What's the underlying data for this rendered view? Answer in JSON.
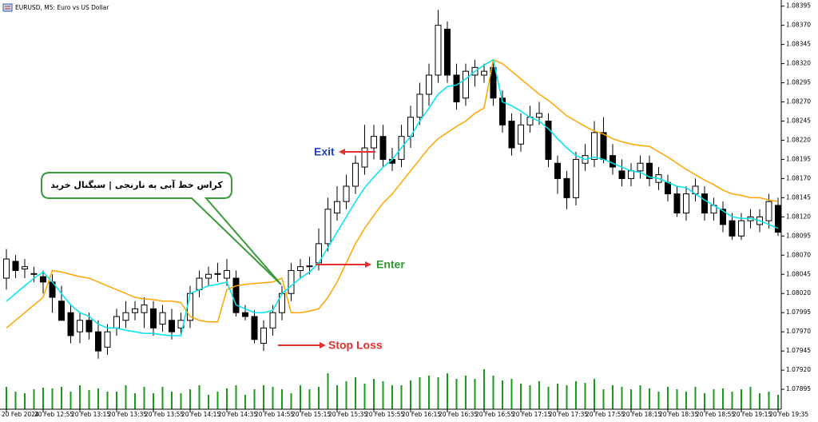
{
  "chart_data": {
    "type": "candlestick",
    "title": "EURUSD, M5:  Euro vs US Dollar",
    "categories": [
      "20 Feb 2024",
      null,
      null,
      null,
      "20 Feb 12:55",
      null,
      null,
      null,
      "20 Feb 13:15",
      null,
      null,
      null,
      "20 Feb 13:35",
      null,
      null,
      null,
      "20 Feb 13:55",
      null,
      null,
      null,
      "20 Feb 14:15",
      null,
      null,
      null,
      "20 Feb 14:35",
      null,
      null,
      null,
      "20 Feb 14:55",
      null,
      null,
      null,
      "20 Feb 15:15",
      null,
      null,
      null,
      "20 Feb 15:35",
      null,
      null,
      null,
      "20 Feb 15:55",
      null,
      null,
      null,
      "20 Feb 16:15",
      null,
      null,
      null,
      "20 Feb 16:35",
      null,
      null,
      null,
      "20 Feb 16:55",
      null,
      null,
      null,
      "20 Feb 17:15",
      null,
      null,
      null,
      "20 Feb 17:35",
      null,
      null,
      null,
      "20 Feb 17:55",
      null,
      null,
      null,
      "20 Feb 18:15",
      null,
      null,
      null,
      "20 Feb 18:35",
      null,
      null,
      null,
      "20 Feb 18:55",
      null,
      null,
      null,
      "20 Feb 19:15",
      null,
      null,
      null,
      "20 Feb 19:35"
    ],
    "open": [
      1.0804,
      1.08062,
      1.08052,
      1.08045,
      1.08042,
      1.08035,
      1.0801,
      1.07995,
      1.0797,
      1.07985,
      1.0797,
      1.0795,
      1.07975,
      1.07985,
      1.07995,
      1.07995,
      1.08,
      1.0798,
      1.07985,
      1.07975,
      1.07985,
      1.08025,
      1.0804,
      1.08045,
      1.0804,
      1.0804,
      1.07995,
      1.0799,
      1.07955,
      1.07975,
      1.07995,
      1.0802,
      1.0805,
      1.08055,
      1.0806,
      1.08085,
      1.08125,
      1.0814,
      1.0816,
      1.08185,
      1.0821,
      1.08225,
      1.08195,
      1.08195,
      1.08225,
      1.0825,
      1.0828,
      1.08305,
      1.08365,
      1.08305,
      1.08275,
      1.08305,
      1.08305,
      1.08315,
      1.08275,
      1.08245,
      1.08215,
      1.0824,
      1.0825,
      1.08245,
      1.0819,
      1.0817,
      1.08145,
      1.0819,
      1.08195,
      1.0823,
      1.082,
      1.0818,
      1.0817,
      1.0818,
      1.0819,
      1.08165,
      1.08165,
      1.0815,
      1.08125,
      1.0815,
      1.0815,
      1.08125,
      1.0813,
      1.08115,
      1.08095,
      1.08115,
      1.0811,
      1.08115,
      1.08135
    ],
    "high": [
      1.08078,
      1.0807,
      1.08065,
      1.08055,
      1.0805,
      1.08045,
      1.0803,
      1.08005,
      1.07995,
      1.07995,
      1.07985,
      1.0798,
      1.08,
      1.0801,
      1.0801,
      1.08015,
      1.0801,
      1.08005,
      1.08,
      1.07995,
      1.0803,
      1.0805,
      1.08055,
      1.0806,
      1.08065,
      1.0805,
      1.08005,
      1.07998,
      1.07985,
      1.08005,
      1.0803,
      1.0806,
      1.08065,
      1.08068,
      1.08105,
      1.08145,
      1.0816,
      1.08175,
      1.082,
      1.0824,
      1.0824,
      1.0824,
      1.0821,
      1.0824,
      1.08265,
      1.08295,
      1.0832,
      1.0839,
      1.08375,
      1.0832,
      1.0832,
      1.08325,
      1.0832,
      1.08325,
      1.08285,
      1.08255,
      1.08255,
      1.08265,
      1.0827,
      1.08255,
      1.082,
      1.0818,
      1.08205,
      1.08215,
      1.08245,
      1.0825,
      1.08215,
      1.08195,
      1.0819,
      1.082,
      1.082,
      1.08185,
      1.08175,
      1.0816,
      1.0816,
      1.0817,
      1.0816,
      1.08145,
      1.0814,
      1.08125,
      1.08125,
      1.0813,
      1.0813,
      1.0815,
      1.08145
    ],
    "low": [
      1.08025,
      1.0804,
      1.0804,
      1.08035,
      1.0802,
      1.07995,
      1.0799,
      1.07955,
      1.07955,
      1.0796,
      1.07935,
      1.0794,
      1.07965,
      1.07975,
      1.07985,
      1.07975,
      1.07965,
      1.0797,
      1.0796,
      1.07965,
      1.07975,
      1.08015,
      1.0803,
      1.08035,
      1.0803,
      1.0799,
      1.07985,
      1.07955,
      1.07945,
      1.07965,
      1.07985,
      1.0801,
      1.0804,
      1.08045,
      1.0805,
      1.08075,
      1.08115,
      1.0813,
      1.0815,
      1.08175,
      1.08195,
      1.08185,
      1.0818,
      1.08185,
      1.0821,
      1.0824,
      1.08265,
      1.08295,
      1.08295,
      1.0826,
      1.08265,
      1.0829,
      1.08295,
      1.08265,
      1.0823,
      1.082,
      1.08205,
      1.0823,
      1.0824,
      1.08185,
      1.0815,
      1.0813,
      1.08135,
      1.0818,
      1.08185,
      1.0819,
      1.08175,
      1.0816,
      1.0816,
      1.0817,
      1.0816,
      1.08155,
      1.0814,
      1.0812,
      1.08115,
      1.0814,
      1.08115,
      1.08115,
      1.081,
      1.0809,
      1.0809,
      1.08105,
      1.081,
      1.08105,
      1.08095
    ],
    "close": [
      1.08065,
      1.0805,
      1.08055,
      1.08046,
      1.08035,
      1.08015,
      1.07985,
      1.07965,
      1.07985,
      1.0797,
      1.07945,
      1.0797,
      1.0799,
      1.07995,
      1.08,
      1.08005,
      1.07975,
      1.07995,
      1.0797,
      1.07985,
      1.0802,
      1.0804,
      1.08045,
      1.08046,
      1.0805,
      1.07995,
      1.0799,
      1.0796,
      1.07975,
      1.07995,
      1.0802,
      1.0805,
      1.08055,
      1.08056,
      1.08085,
      1.0813,
      1.0814,
      1.0816,
      1.0819,
      1.0821,
      1.08225,
      1.08195,
      1.0819,
      1.08225,
      1.0825,
      1.0828,
      1.08305,
      1.0837,
      1.08305,
      1.0827,
      1.0831,
      1.08315,
      1.0831,
      1.08275,
      1.0824,
      1.0821,
      1.0824,
      1.0825,
      1.08255,
      1.08195,
      1.0817,
      1.08145,
      1.08195,
      1.082,
      1.0823,
      1.08195,
      1.08185,
      1.0817,
      1.0818,
      1.0819,
      1.0817,
      1.08175,
      1.0815,
      1.08125,
      1.0815,
      1.0816,
      1.08125,
      1.08135,
      1.0811,
      1.08095,
      1.08115,
      1.0812,
      1.0812,
      1.0814,
      1.081
    ],
    "volume": [
      28,
      22,
      20,
      25,
      27,
      26,
      28,
      22,
      30,
      24,
      26,
      22,
      22,
      30,
      20,
      28,
      20,
      28,
      22,
      20,
      25,
      30,
      18,
      22,
      26,
      30,
      18,
      25,
      30,
      28,
      25,
      20,
      30,
      25,
      28,
      45,
      30,
      35,
      40,
      32,
      38,
      35,
      30,
      30,
      36,
      40,
      42,
      40,
      45,
      38,
      42,
      38,
      50,
      42,
      36,
      38,
      32,
      30,
      35,
      28,
      32,
      30,
      35,
      33,
      38,
      25,
      30,
      28,
      25,
      30,
      26,
      22,
      28,
      25,
      22,
      28,
      20,
      25,
      26,
      22,
      25,
      28,
      20,
      22,
      18
    ],
    "volume_color": "#1a9a1a",
    "up_color": "#ffffff",
    "down_color": "#000000",
    "lines": [
      {
        "color": "#ffa500",
        "values": [
          1.07975,
          1.07985,
          1.07995,
          1.08005,
          1.08015,
          1.0805,
          1.08048,
          1.08045,
          1.08042,
          1.0804,
          1.08035,
          1.0803,
          1.08025,
          1.0802,
          1.08015,
          1.08013,
          1.08012,
          1.0801,
          1.0801,
          1.08008,
          1.0799,
          1.07985,
          1.07983,
          1.07983,
          1.08025,
          1.0803,
          1.08032,
          1.08033,
          1.08034,
          1.08035,
          1.0804,
          1.07995,
          1.07995,
          1.07997,
          1.08,
          1.08015,
          1.08035,
          1.0806,
          1.08085,
          1.08105,
          1.08122,
          1.08138,
          1.0815,
          1.08165,
          1.0818,
          1.08195,
          1.0821,
          1.08222,
          1.0823,
          1.08238,
          1.08245,
          1.08255,
          1.08262,
          1.08325,
          1.0832,
          1.0831,
          1.083,
          1.0829,
          1.0828,
          1.08272,
          1.08262,
          1.08252,
          1.08245,
          1.08238,
          1.08232,
          1.08228,
          1.08222,
          1.08218,
          1.08215,
          1.08213,
          1.08212,
          1.08205,
          1.08198,
          1.0819,
          1.08182,
          1.08175,
          1.08168,
          1.08162,
          1.08155,
          1.0815,
          1.08148,
          1.08145,
          1.08145,
          1.08142,
          1.0814
        ]
      },
      {
        "color": "#00e5ee",
        "values": [
          1.0801,
          1.0802,
          1.0803,
          1.0804,
          1.08048,
          1.08035,
          1.0802,
          1.08005,
          1.07995,
          1.0799,
          1.0798,
          1.07975,
          1.07975,
          1.07972,
          1.0797,
          1.07968,
          1.07968,
          1.07966,
          1.07965,
          1.07965,
          1.0802,
          1.08025,
          1.0803,
          1.08032,
          1.08035,
          1.08005,
          1.08,
          1.07995,
          1.07995,
          1.07998,
          1.0802,
          1.0803,
          1.0804,
          1.08048,
          1.0806,
          1.0808,
          1.081,
          1.0812,
          1.0814,
          1.08158,
          1.08172,
          1.08185,
          1.08195,
          1.0821,
          1.08225,
          1.08245,
          1.08262,
          1.0828,
          1.0829,
          1.08292,
          1.083,
          1.0831,
          1.08318,
          1.08325,
          1.0827,
          1.08265,
          1.08258,
          1.0825,
          1.08245,
          1.08235,
          1.08222,
          1.0821,
          1.082,
          1.08195,
          1.08198,
          1.08195,
          1.0819,
          1.08185,
          1.0818,
          1.08178,
          1.08172,
          1.0817,
          1.08165,
          1.0816,
          1.08158,
          1.0815,
          1.08142,
          1.08135,
          1.08128,
          1.0812,
          1.08118,
          1.08118,
          1.08115,
          1.0811,
          1.08105
        ]
      }
    ],
    "ylim": [
      1.07869,
      1.08403
    ],
    "yticks": [
      1.08395,
      {
        "value": 1.0837,
        "label": "1.08370"
      },
      1.08345,
      {
        "value": 1.0832,
        "label": "1.08320"
      },
      1.08295,
      {
        "value": 1.0827,
        "label": "1.08270"
      },
      1.08245,
      {
        "value": 1.0822,
        "label": "1.08220"
      },
      1.08195,
      {
        "value": 1.0817,
        "label": "1.08170"
      },
      1.08145,
      {
        "value": 1.0812,
        "label": "1.08120"
      },
      1.08095,
      {
        "value": 1.0807,
        "label": "1.08070"
      },
      1.08045,
      {
        "value": 1.0802,
        "label": "1.08020"
      },
      1.07995,
      {
        "value": 1.0797,
        "label": "1.07970"
      },
      1.07945,
      {
        "value": 1.0792,
        "label": "1.07920"
      },
      1.07895
    ],
    "grid": false,
    "annotations": {
      "callout": "کراس خط آبی به نارنجی | سیگنال  خرید",
      "exit": "Exit",
      "enter": "Enter",
      "stop_loss": "Stop Loss"
    }
  }
}
